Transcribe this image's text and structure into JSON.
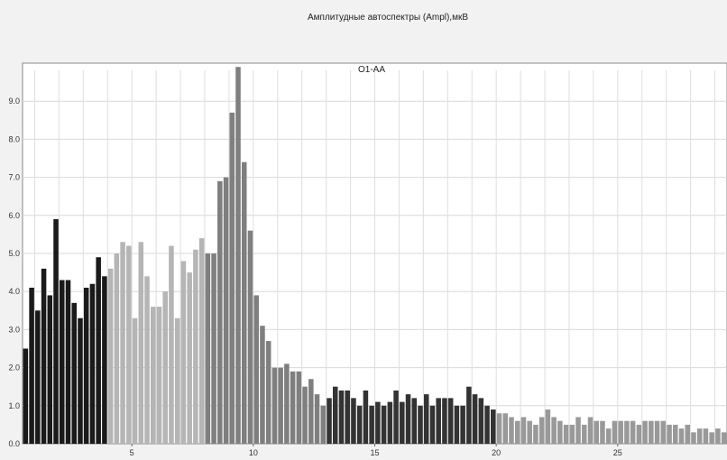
{
  "chart_data": {
    "type": "bar",
    "title": "Амплитудные автоспектры (Ampl),мкВ",
    "subtitle": "O1-AA",
    "xlabel": "",
    "ylabel": "",
    "xlim": [
      0.5,
      29.5
    ],
    "ylim": [
      0,
      10.0
    ],
    "x_ticks": [
      5,
      10,
      15,
      20,
      25
    ],
    "y_ticks": [
      0.0,
      1.0,
      2.0,
      3.0,
      4.0,
      5.0,
      6.0,
      7.0,
      8.0,
      9.0
    ],
    "grid": true,
    "bar_width": 0.25,
    "series": [
      {
        "color": "#1a1a1a",
        "x": [
          0.625,
          0.875,
          1.125,
          1.375,
          1.625,
          1.875,
          2.125,
          2.375,
          2.625,
          2.875,
          3.125,
          3.375,
          3.625,
          3.875
        ],
        "values": [
          2.5,
          4.1,
          3.5,
          4.6,
          3.9,
          5.9,
          4.3,
          4.3,
          3.7,
          3.3,
          4.1,
          4.2,
          4.9,
          4.4
        ]
      },
      {
        "color": "#b5b5b5",
        "x": [
          4.125,
          4.375,
          4.625,
          4.875,
          5.125,
          5.375,
          5.625,
          5.875,
          6.125,
          6.375,
          6.625,
          6.875,
          7.125,
          7.375,
          7.625,
          7.875
        ],
        "values": [
          4.6,
          5.0,
          5.3,
          5.2,
          3.3,
          5.3,
          4.4,
          3.6,
          3.6,
          4.0,
          5.2,
          3.3,
          4.8,
          4.5,
          5.1,
          5.4
        ]
      },
      {
        "color": "#7f7f7f",
        "x": [
          8.125,
          8.375,
          8.625,
          8.875,
          9.125,
          9.375,
          9.625,
          9.875,
          10.125,
          10.375,
          10.625,
          10.875,
          11.125,
          11.375,
          11.625,
          11.875,
          12.125,
          12.375,
          12.625,
          12.875
        ],
        "values": [
          5.0,
          5.0,
          6.9,
          7.0,
          8.7,
          9.9,
          7.4,
          5.6,
          3.9,
          3.1,
          2.7,
          2.0,
          2.0,
          2.1,
          1.9,
          1.9,
          1.5,
          1.7,
          1.3,
          1.0
        ]
      },
      {
        "color": "#333333",
        "x": [
          13.125,
          13.375,
          13.625,
          13.875,
          14.125,
          14.375,
          14.625,
          14.875,
          15.125,
          15.375,
          15.625,
          15.875,
          16.125,
          16.375,
          16.625,
          16.875,
          17.125,
          17.375,
          17.625,
          17.875,
          18.125,
          18.375,
          18.625,
          18.875,
          19.125,
          19.375,
          19.625,
          19.875
        ],
        "values": [
          1.2,
          1.5,
          1.4,
          1.4,
          1.2,
          1.0,
          1.4,
          1.0,
          1.1,
          1.0,
          1.1,
          1.4,
          1.1,
          1.3,
          1.2,
          1.0,
          1.3,
          1.0,
          1.2,
          1.2,
          1.2,
          1.0,
          1.0,
          1.5,
          1.3,
          1.2,
          1.0,
          0.9
        ]
      },
      {
        "color": "#999999",
        "x": [
          20.125,
          20.375,
          20.625,
          20.875,
          21.125,
          21.375,
          21.625,
          21.875,
          22.125,
          22.375,
          22.625,
          22.875,
          23.125,
          23.375,
          23.625,
          23.875,
          24.125,
          24.375,
          24.625,
          24.875,
          25.125,
          25.375,
          25.625,
          25.875,
          26.125,
          26.375,
          26.625,
          26.875,
          27.125,
          27.375,
          27.625,
          27.875,
          28.125,
          28.375,
          28.625,
          28.875,
          29.125,
          29.375
        ],
        "values": [
          0.8,
          0.8,
          0.7,
          0.6,
          0.7,
          0.6,
          0.5,
          0.7,
          0.9,
          0.7,
          0.6,
          0.5,
          0.5,
          0.7,
          0.5,
          0.7,
          0.6,
          0.6,
          0.4,
          0.6,
          0.6,
          0.6,
          0.6,
          0.5,
          0.6,
          0.6,
          0.6,
          0.6,
          0.5,
          0.5,
          0.4,
          0.5,
          0.3,
          0.4,
          0.4,
          0.3,
          0.4,
          0.3
        ]
      }
    ]
  }
}
